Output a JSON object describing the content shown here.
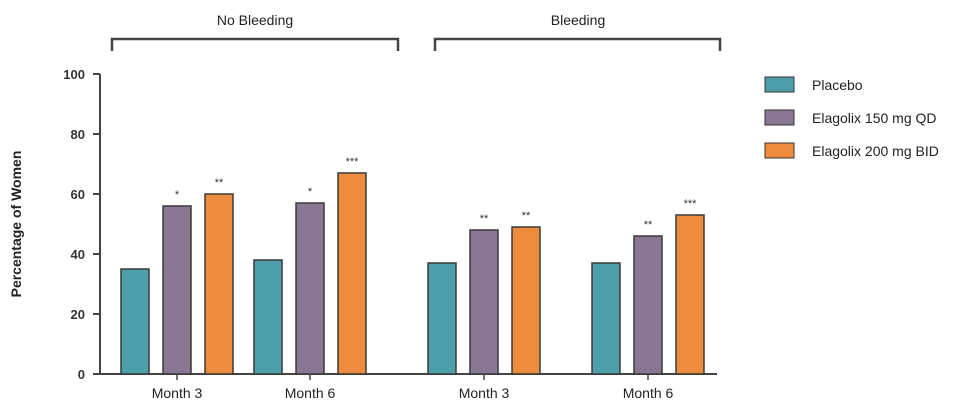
{
  "chart_data": {
    "type": "bar",
    "ylabel": "Percentage of Women",
    "ylim": [
      0,
      100
    ],
    "yticks": [
      "0",
      "20",
      "40",
      "60",
      "80",
      "100"
    ],
    "groups": [
      {
        "label": "No Bleeding",
        "categories": [
          "Month 3",
          "Month 6"
        ]
      },
      {
        "label": "Bleeding",
        "categories": [
          "Month 3",
          "Month 6"
        ]
      }
    ],
    "categories": [
      "Month 3",
      "Month 6",
      "Month 3",
      "Month 6"
    ],
    "series": [
      {
        "name": "Placebo",
        "color": "#4f9fab",
        "values": [
          35,
          38,
          37,
          37
        ],
        "annotations": [
          "",
          "",
          "",
          ""
        ]
      },
      {
        "name": "Elagolix 150 mg QD",
        "color": "#8a7793",
        "values": [
          56,
          57,
          48,
          46
        ],
        "annotations": [
          "*",
          "*",
          "**",
          "**"
        ]
      },
      {
        "name": "Elagolix 200 mg BID",
        "color": "#ee8c3e",
        "values": [
          60,
          67,
          49,
          53
        ],
        "annotations": [
          "**",
          "***",
          "**",
          "***"
        ]
      }
    ],
    "grid": false,
    "legend_position": "right"
  }
}
